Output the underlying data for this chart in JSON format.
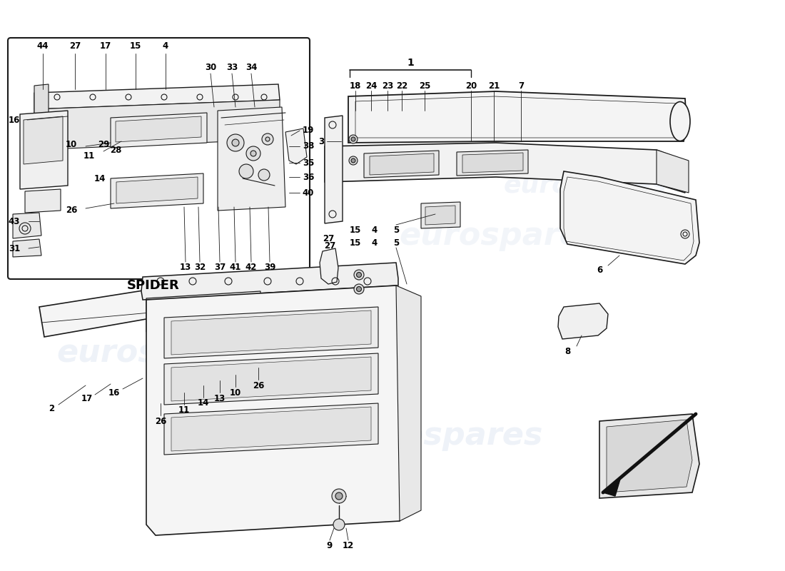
{
  "bg_color": "#ffffff",
  "line_color": "#1a1a1a",
  "wm_color": "#c8d4e8",
  "wm_text": "eurospares",
  "spider_label": "SPIDER",
  "figsize": [
    11.0,
    8.0
  ],
  "dpi": 100
}
